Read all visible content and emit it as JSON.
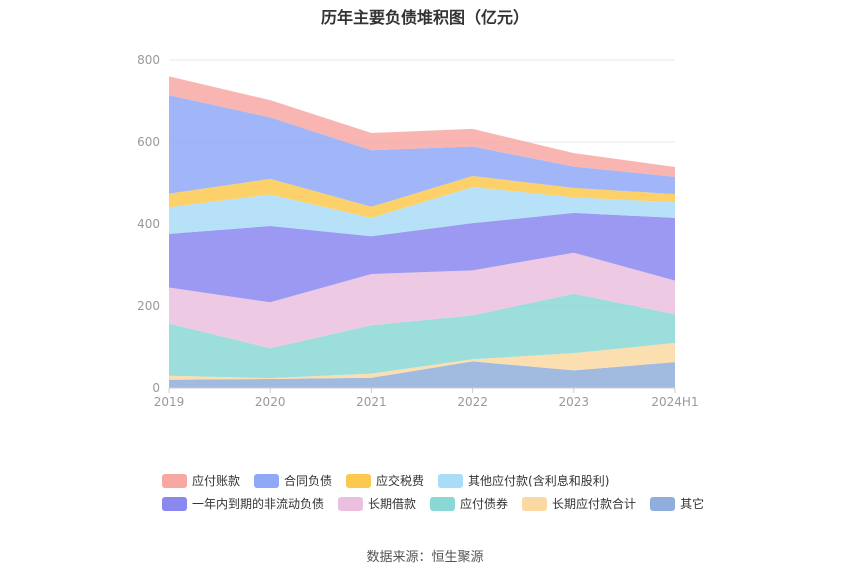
{
  "title": "历年主要负债堆积图（亿元）",
  "source": "数据来源：恒生聚源",
  "colors": {
    "应付账款": "#f7a8a3",
    "合同负债": "#8fa9f7",
    "应交税费": "#fcc94f",
    "其他应付款(含利息和股利)": "#a9dcf7",
    "一年内到期的非流动负债": "#8a87ef",
    "长期借款": "#ebc0de",
    "应付债券": "#8ad8d6",
    "长期应付款合计": "#fcd9a2",
    "其它": "#90aedb"
  },
  "chart_data": {
    "type": "area",
    "stacked": true,
    "title": "历年主要负债堆积图（亿元）",
    "categories": [
      "2019",
      "2020",
      "2021",
      "2022",
      "2023",
      "2024H1"
    ],
    "ylim": [
      0,
      800
    ],
    "yticks": [
      "0",
      "200",
      "400",
      "600",
      "800"
    ],
    "grid": true,
    "legend_position": "bottom",
    "series": [
      {
        "name": "其它",
        "values": [
          20,
          22,
          25,
          65,
          43,
          63
        ]
      },
      {
        "name": "长期应付款合计",
        "values": [
          10,
          2,
          10,
          5,
          42,
          47
        ]
      },
      {
        "name": "应付债券",
        "values": [
          127,
          73,
          118,
          107,
          145,
          70
        ]
      },
      {
        "name": "长期借款",
        "values": [
          88,
          112,
          125,
          110,
          100,
          82
        ]
      },
      {
        "name": "一年内到期的非流动负债",
        "values": [
          131,
          186,
          92,
          115,
          97,
          153
        ]
      },
      {
        "name": "其他应付款(含利息和股利)",
        "values": [
          65,
          77,
          45,
          88,
          38,
          38
        ]
      },
      {
        "name": "应交税费",
        "values": [
          33,
          38,
          27,
          27,
          23,
          20
        ]
      },
      {
        "name": "合同负债",
        "values": [
          240,
          150,
          138,
          72,
          52,
          42
        ]
      },
      {
        "name": "应付账款",
        "values": [
          46,
          42,
          42,
          43,
          33,
          24
        ]
      }
    ]
  },
  "legend_rows": [
    [
      "应付账款",
      "合同负债",
      "应交税费",
      "其他应付款(含利息和股利)"
    ],
    [
      "一年内到期的非流动负债",
      "长期借款",
      "应付债券",
      "长期应付款合计",
      "其它"
    ]
  ]
}
